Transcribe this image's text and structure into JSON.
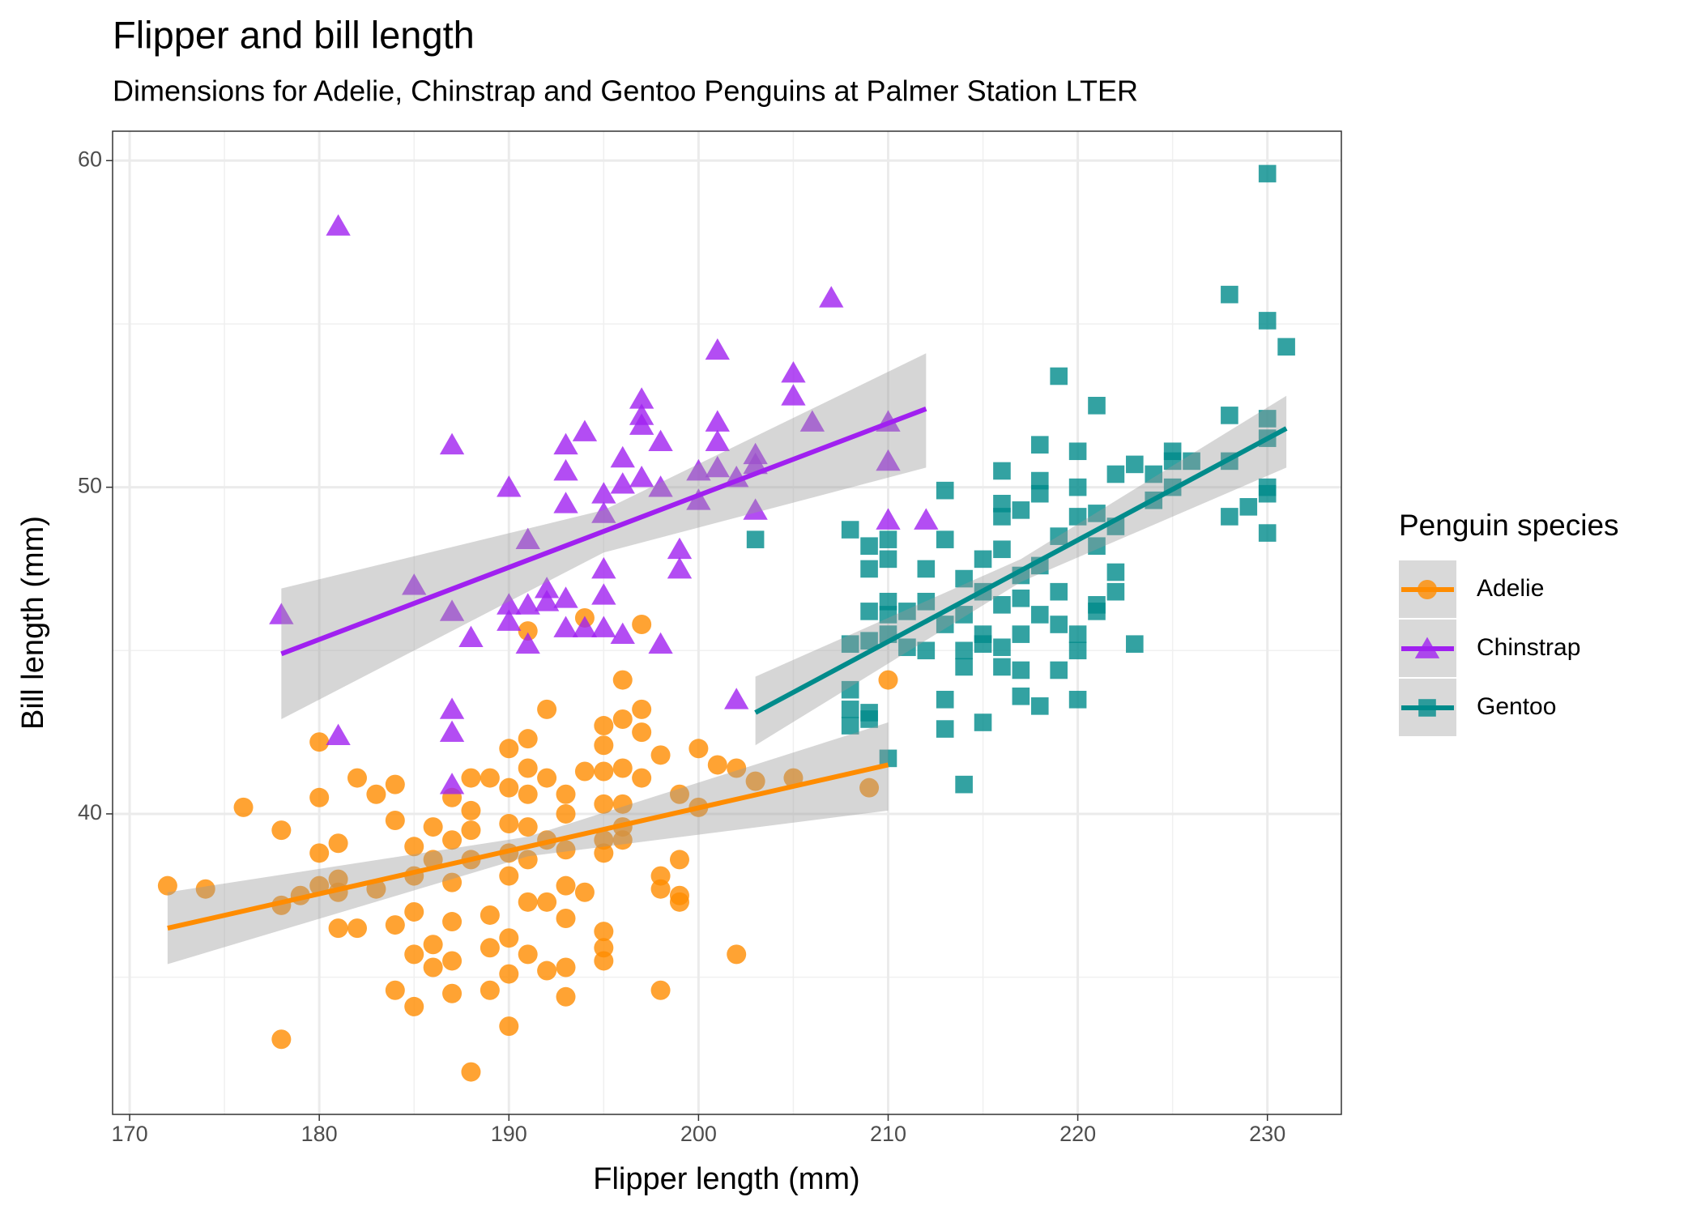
{
  "chart_data": {
    "type": "scatter",
    "title": "Flipper and bill length",
    "subtitle": "Dimensions for Adelie, Chinstrap and Gentoo Penguins at Palmer Station LTER",
    "x_label": "Flipper length (mm)",
    "y_label": "Bill length (mm)",
    "legend_title": "Penguin species",
    "legend_position": "right",
    "grid": true,
    "xlim": [
      169.1,
      233.9
    ],
    "ylim": [
      30.8,
      60.9
    ],
    "xticks": [
      170,
      180,
      190,
      200,
      210,
      220,
      230
    ],
    "yticks": [
      40,
      50,
      60
    ],
    "xminor": [
      175,
      185,
      195,
      205,
      215,
      225
    ],
    "yminor": [
      35,
      45,
      55
    ],
    "series": [
      {
        "name": "Adelie",
        "color": "#ff8c00",
        "shape": "circle",
        "x": [
          172,
          174,
          176,
          178,
          178,
          178,
          179,
          180,
          180,
          180,
          180,
          181,
          181,
          181,
          181,
          182,
          182,
          183,
          183,
          184,
          184,
          184,
          184,
          185,
          185,
          185,
          185,
          185,
          186,
          186,
          186,
          186,
          187,
          187,
          187,
          187,
          187,
          187,
          188,
          188,
          188,
          188,
          188,
          189,
          189,
          189,
          189,
          190,
          190,
          190,
          190,
          190,
          190,
          190,
          190,
          191,
          191,
          191,
          191,
          191,
          191,
          191,
          191,
          192,
          192,
          192,
          192,
          192,
          193,
          193,
          193,
          193,
          193,
          193,
          193,
          194,
          194,
          194,
          195,
          195,
          195,
          195,
          195,
          195,
          195,
          195,
          195,
          196,
          196,
          196,
          196,
          196,
          196,
          197,
          197,
          197,
          197,
          198,
          198,
          198,
          198,
          199,
          199,
          199,
          199,
          200,
          200,
          201,
          202,
          202,
          203,
          205,
          209,
          210
        ],
        "values": [
          37.8,
          37.7,
          40.2,
          39.5,
          37.2,
          33.1,
          37.5,
          42.2,
          40.5,
          38.8,
          37.8,
          39.1,
          38.0,
          37.6,
          36.5,
          41.1,
          36.5,
          40.6,
          37.7,
          40.9,
          39.8,
          36.6,
          34.6,
          39.0,
          38.1,
          37.0,
          35.7,
          34.1,
          39.6,
          38.6,
          36.0,
          35.3,
          40.5,
          39.2,
          37.9,
          36.7,
          35.5,
          34.5,
          41.1,
          40.1,
          39.5,
          38.6,
          32.1,
          41.1,
          36.9,
          35.9,
          34.6,
          42.0,
          40.8,
          39.7,
          38.8,
          38.1,
          36.2,
          35.1,
          33.5,
          42.3,
          41.4,
          40.6,
          39.6,
          38.6,
          37.3,
          35.7,
          45.6,
          43.2,
          41.1,
          39.2,
          37.3,
          35.2,
          40.6,
          40.0,
          38.9,
          37.8,
          36.8,
          35.3,
          34.4,
          41.3,
          37.6,
          46.0,
          42.7,
          42.1,
          41.3,
          40.3,
          39.2,
          38.8,
          36.4,
          35.9,
          35.5,
          44.1,
          42.9,
          41.4,
          40.3,
          39.6,
          39.2,
          43.2,
          42.5,
          41.1,
          45.8,
          41.8,
          38.1,
          37.7,
          34.6,
          40.6,
          38.6,
          37.5,
          37.3,
          42.0,
          40.2,
          41.5,
          41.4,
          35.7,
          41.0,
          41.1,
          40.8,
          44.1
        ],
        "fit": {
          "x": [
            172,
            191,
            210
          ],
          "y": [
            36.5,
            39.0,
            41.5
          ],
          "lower": [
            35.4,
            38.7,
            40.1
          ],
          "upper": [
            37.6,
            39.3,
            42.8
          ]
        }
      },
      {
        "name": "Chinstrap",
        "color": "#a020f0",
        "shape": "triangle",
        "x": [
          178,
          181,
          181,
          185,
          187,
          187,
          187,
          187,
          187,
          188,
          190,
          190,
          190,
          191,
          191,
          191,
          192,
          192,
          193,
          193,
          193,
          193,
          193,
          194,
          194,
          195,
          195,
          195,
          195,
          195,
          196,
          196,
          196,
          197,
          197,
          197,
          197,
          198,
          198,
          198,
          199,
          199,
          200,
          200,
          201,
          201,
          201,
          201,
          202,
          203,
          203,
          203,
          202,
          205,
          205,
          206,
          207,
          210,
          210,
          210,
          212
        ],
        "values": [
          46.1,
          58.0,
          42.4,
          47.0,
          51.3,
          46.2,
          43.2,
          42.5,
          40.9,
          45.4,
          50.0,
          46.4,
          45.9,
          48.4,
          46.4,
          45.2,
          46.9,
          46.5,
          51.3,
          50.5,
          49.5,
          46.6,
          45.7,
          51.7,
          45.7,
          49.8,
          49.2,
          47.5,
          46.7,
          45.7,
          50.9,
          50.1,
          45.5,
          52.7,
          52.2,
          51.9,
          50.3,
          51.4,
          50.0,
          45.2,
          48.1,
          47.5,
          50.5,
          49.6,
          54.2,
          52.0,
          51.4,
          50.6,
          50.3,
          51.0,
          50.7,
          49.3,
          43.5,
          53.5,
          52.8,
          52.0,
          55.8,
          52.0,
          50.8,
          49.0,
          49.0
        ],
        "fit": {
          "x": [
            178,
            195,
            212
          ],
          "y": [
            44.9,
            48.65,
            52.4
          ],
          "lower": [
            42.9,
            48.0,
            50.6
          ],
          "upper": [
            46.9,
            49.3,
            54.1
          ]
        }
      },
      {
        "name": "Gentoo",
        "color": "#008b8b",
        "shape": "square",
        "x": [
          203,
          208,
          208,
          208,
          208,
          208,
          209,
          209,
          209,
          209,
          209,
          209,
          210,
          210,
          210,
          210,
          210,
          210,
          211,
          211,
          212,
          212,
          212,
          213,
          213,
          213,
          213,
          213,
          214,
          214,
          214,
          214,
          214,
          215,
          215,
          215,
          215,
          215,
          216,
          216,
          216,
          216,
          216,
          216,
          216,
          217,
          217,
          217,
          217,
          217,
          217,
          218,
          218,
          218,
          218,
          218,
          218,
          219,
          219,
          219,
          219,
          219,
          220,
          220,
          220,
          220,
          220,
          220,
          221,
          221,
          221,
          221,
          221,
          222,
          222,
          222,
          222,
          223,
          223,
          224,
          224,
          225,
          225,
          225,
          226,
          228,
          228,
          228,
          228,
          229,
          230,
          230,
          230,
          230,
          230,
          230,
          230,
          231
        ],
        "values": [
          48.4,
          48.7,
          45.2,
          43.8,
          43.2,
          42.7,
          48.2,
          47.5,
          46.2,
          45.3,
          43.1,
          42.9,
          48.4,
          47.8,
          46.5,
          46.1,
          45.5,
          41.7,
          46.2,
          45.1,
          47.5,
          46.5,
          45.0,
          49.9,
          48.4,
          45.8,
          43.5,
          42.6,
          47.2,
          46.1,
          45.0,
          44.5,
          40.9,
          47.8,
          46.8,
          45.5,
          45.2,
          42.8,
          50.5,
          49.5,
          49.1,
          48.1,
          46.4,
          45.1,
          44.5,
          49.3,
          47.3,
          46.6,
          45.5,
          44.4,
          43.6,
          51.3,
          50.2,
          49.8,
          47.6,
          46.1,
          43.3,
          53.4,
          48.5,
          46.8,
          45.8,
          44.4,
          51.1,
          50.0,
          49.1,
          45.5,
          45.0,
          43.5,
          52.5,
          49.2,
          48.2,
          46.4,
          46.2,
          50.4,
          48.8,
          47.4,
          46.8,
          50.7,
          45.2,
          50.4,
          49.6,
          51.1,
          50.8,
          50.0,
          50.8,
          55.9,
          52.2,
          50.8,
          49.1,
          49.4,
          59.6,
          55.1,
          52.1,
          51.5,
          50.0,
          49.8,
          48.6,
          54.3
        ],
        "fit": {
          "x": [
            203,
            217,
            231
          ],
          "y": [
            43.1,
            47.45,
            51.8
          ],
          "lower": [
            42.1,
            47.1,
            50.6
          ],
          "upper": [
            44.2,
            47.8,
            52.8
          ]
        }
      }
    ]
  }
}
